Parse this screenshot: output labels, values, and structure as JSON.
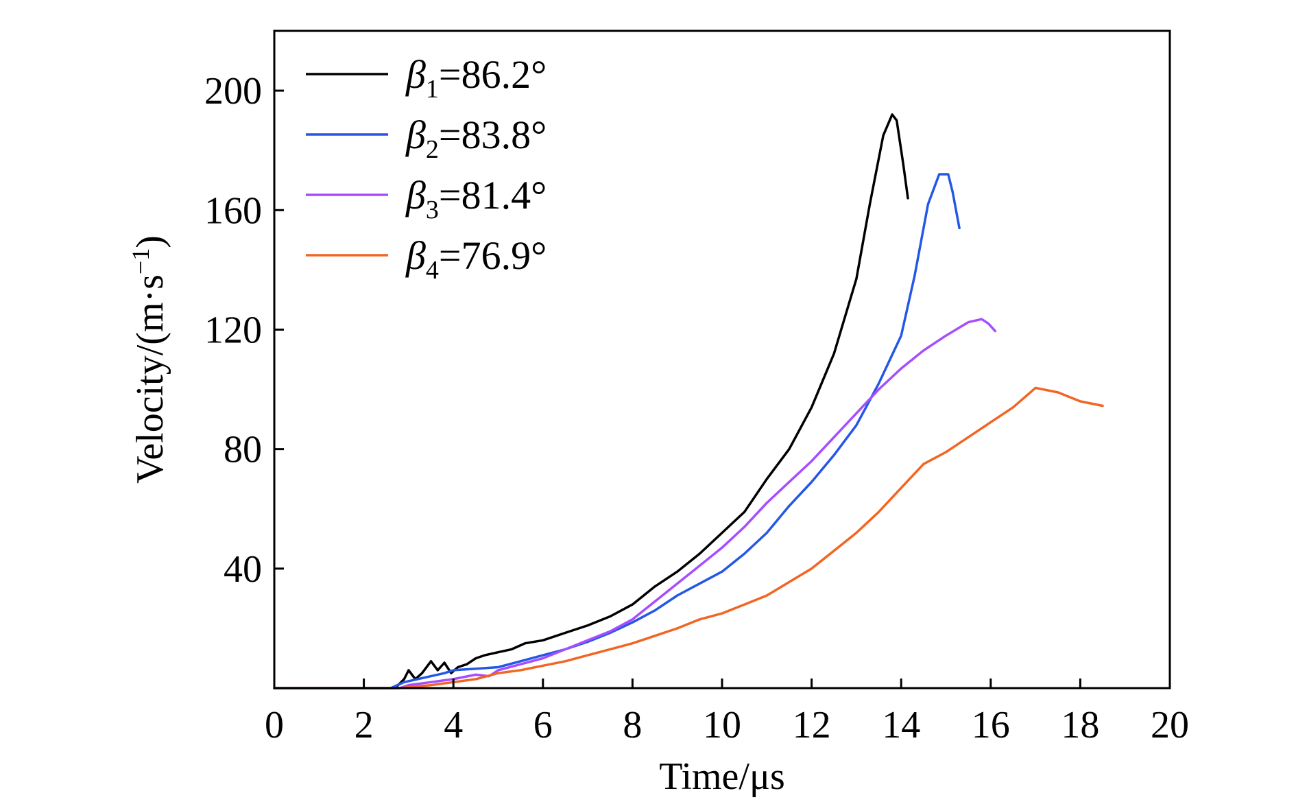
{
  "chart_data": {
    "type": "line",
    "xlabel": "Time/μs",
    "ylabel_text": "Velocity/(m·s",
    "ylabel_sup": "−1",
    "ylabel_close": ")",
    "xlim": [
      0,
      20
    ],
    "ylim": [
      0,
      220
    ],
    "xticks": [
      0,
      2,
      4,
      6,
      8,
      10,
      12,
      14,
      16,
      18,
      20
    ],
    "yticks": [
      40,
      80,
      120,
      160,
      200
    ],
    "grid": false,
    "legend_position": "top-left",
    "series": [
      {
        "symbol": "β",
        "sub": "1",
        "value_text": "=86.2°",
        "color": "#000000",
        "points": [
          [
            0,
            0
          ],
          [
            1.6,
            0
          ],
          [
            2.7,
            0
          ],
          [
            2.9,
            3
          ],
          [
            3.0,
            6
          ],
          [
            3.15,
            3
          ],
          [
            3.3,
            5
          ],
          [
            3.5,
            9
          ],
          [
            3.65,
            6
          ],
          [
            3.8,
            8.5
          ],
          [
            3.95,
            5
          ],
          [
            4.1,
            7
          ],
          [
            4.3,
            8
          ],
          [
            4.5,
            10
          ],
          [
            4.7,
            11
          ],
          [
            5,
            12
          ],
          [
            5.3,
            13
          ],
          [
            5.6,
            15
          ],
          [
            6,
            16
          ],
          [
            6.5,
            18.5
          ],
          [
            7,
            21
          ],
          [
            7.5,
            24
          ],
          [
            8,
            28
          ],
          [
            8.5,
            34
          ],
          [
            9,
            39
          ],
          [
            9.5,
            45
          ],
          [
            10,
            52
          ],
          [
            10.5,
            59
          ],
          [
            11,
            70
          ],
          [
            11.5,
            80
          ],
          [
            12,
            94
          ],
          [
            12.5,
            112
          ],
          [
            13,
            137
          ],
          [
            13.3,
            162
          ],
          [
            13.6,
            185
          ],
          [
            13.8,
            192
          ],
          [
            13.9,
            190
          ],
          [
            14.05,
            175
          ],
          [
            14.15,
            164
          ]
        ]
      },
      {
        "symbol": "β",
        "sub": "2",
        "value_text": "=83.8°",
        "color": "#2457e6",
        "points": [
          [
            0,
            0
          ],
          [
            1.6,
            0
          ],
          [
            2.6,
            0
          ],
          [
            2.9,
            2
          ],
          [
            3.2,
            3
          ],
          [
            3.5,
            4
          ],
          [
            3.8,
            5
          ],
          [
            4,
            6
          ],
          [
            4.5,
            6.5
          ],
          [
            5,
            7
          ],
          [
            5.5,
            9
          ],
          [
            6,
            11
          ],
          [
            6.5,
            13
          ],
          [
            7,
            15.5
          ],
          [
            7.5,
            18.5
          ],
          [
            8,
            22
          ],
          [
            8.5,
            26
          ],
          [
            9,
            31
          ],
          [
            9.5,
            35
          ],
          [
            10,
            39
          ],
          [
            10.5,
            45
          ],
          [
            11,
            52
          ],
          [
            11.5,
            61
          ],
          [
            12,
            69
          ],
          [
            12.5,
            78
          ],
          [
            13,
            88
          ],
          [
            13.5,
            102
          ],
          [
            14,
            118
          ],
          [
            14.3,
            138
          ],
          [
            14.6,
            162
          ],
          [
            14.85,
            172
          ],
          [
            15.05,
            172
          ],
          [
            15.15,
            166
          ],
          [
            15.3,
            154
          ]
        ]
      },
      {
        "symbol": "β",
        "sub": "3",
        "value_text": "=81.4°",
        "color": "#a64dff",
        "points": [
          [
            0,
            0
          ],
          [
            1.6,
            0
          ],
          [
            2.8,
            0
          ],
          [
            3,
            1
          ],
          [
            3.5,
            2
          ],
          [
            4,
            3
          ],
          [
            4.5,
            4.5
          ],
          [
            4.8,
            4
          ],
          [
            5,
            6
          ],
          [
            5.5,
            8
          ],
          [
            6,
            10
          ],
          [
            6.5,
            13
          ],
          [
            7,
            16
          ],
          [
            7.5,
            19
          ],
          [
            8,
            23
          ],
          [
            8.5,
            29
          ],
          [
            9,
            35
          ],
          [
            9.5,
            41
          ],
          [
            10,
            47
          ],
          [
            10.5,
            54
          ],
          [
            11,
            62
          ],
          [
            11.5,
            69
          ],
          [
            12,
            76
          ],
          [
            12.5,
            84
          ],
          [
            13,
            92
          ],
          [
            13.5,
            100
          ],
          [
            14,
            107
          ],
          [
            14.5,
            113
          ],
          [
            15,
            118
          ],
          [
            15.5,
            122.5
          ],
          [
            15.8,
            123.5
          ],
          [
            15.95,
            122
          ],
          [
            16.1,
            119.5
          ]
        ]
      },
      {
        "symbol": "β",
        "sub": "4",
        "value_text": "=76.9°",
        "color": "#f26522",
        "points": [
          [
            0,
            0
          ],
          [
            1.6,
            0
          ],
          [
            2.8,
            0
          ],
          [
            3.5,
            1
          ],
          [
            4,
            2
          ],
          [
            4.5,
            3
          ],
          [
            5,
            5
          ],
          [
            5.5,
            6
          ],
          [
            6,
            7.5
          ],
          [
            6.5,
            9
          ],
          [
            7,
            11
          ],
          [
            7.5,
            13
          ],
          [
            8,
            15
          ],
          [
            8.5,
            17.5
          ],
          [
            9,
            20
          ],
          [
            9.5,
            23
          ],
          [
            10,
            25
          ],
          [
            10.5,
            28
          ],
          [
            11,
            31
          ],
          [
            11.5,
            35.5
          ],
          [
            12,
            40
          ],
          [
            12.5,
            46
          ],
          [
            13,
            52
          ],
          [
            13.5,
            59
          ],
          [
            14,
            67
          ],
          [
            14.5,
            75
          ],
          [
            15,
            79
          ],
          [
            15.5,
            84
          ],
          [
            16,
            89
          ],
          [
            16.5,
            94
          ],
          [
            17,
            100.5
          ],
          [
            17.5,
            99
          ],
          [
            18,
            96
          ],
          [
            18.5,
            94.5
          ]
        ]
      }
    ]
  }
}
